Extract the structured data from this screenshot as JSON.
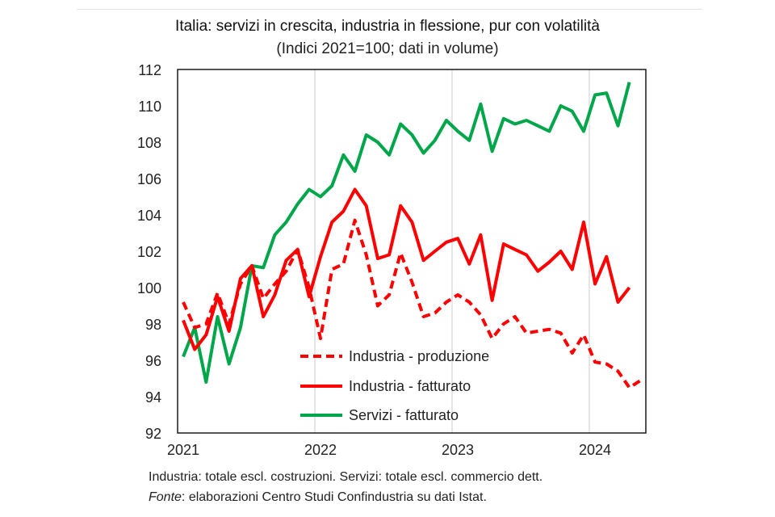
{
  "chart_data": {
    "type": "line",
    "title": "Italia: servizi in crescita, industria in flessione, pur con volatilità",
    "subtitle": "(Indici 2021=100; dati in volume)",
    "xlabel": "",
    "ylabel": "",
    "ylim": [
      92,
      112
    ],
    "yticks": [
      92,
      94,
      96,
      98,
      100,
      102,
      104,
      106,
      108,
      110,
      112
    ],
    "xticks": [
      "2021",
      "2022",
      "2023",
      "2024"
    ],
    "x_start": "2021-01",
    "x_frequency": "monthly",
    "grid": "vertical at year boundaries",
    "legend_position": "bottom-center inside plot",
    "series": [
      {
        "name": "Industria - produzione",
        "color": "#ff0000",
        "style": "dashed",
        "values": [
          99.2,
          97.8,
          98.0,
          99.7,
          98.0,
          100.2,
          101.2,
          99.4,
          100.2,
          100.9,
          102.1,
          100.0,
          97.2,
          101.0,
          101.3,
          103.7,
          101.8,
          99.0,
          99.6,
          101.9,
          100.3,
          98.4,
          98.6,
          99.2,
          99.6,
          99.2,
          98.5,
          97.2,
          98.0,
          98.4,
          97.5,
          97.6,
          97.7,
          97.5,
          96.4,
          97.4,
          95.9,
          95.8,
          95.4,
          94.5,
          94.9
        ]
      },
      {
        "name": "Industria - fatturato",
        "color": "#ff0000",
        "style": "solid",
        "values": [
          98.2,
          96.6,
          97.4,
          99.5,
          97.6,
          100.5,
          101.2,
          98.4,
          99.6,
          101.5,
          102.1,
          99.5,
          101.7,
          103.6,
          104.2,
          105.4,
          104.5,
          101.6,
          101.8,
          104.5,
          103.6,
          101.5,
          102.0,
          102.5,
          102.7,
          101.3,
          102.9,
          99.3,
          102.4,
          102.1,
          101.8,
          100.9,
          101.4,
          102.0,
          101.0,
          103.6,
          100.2,
          101.7,
          99.2,
          100.0
        ]
      },
      {
        "name": "Servizi - fatturato",
        "color": "#00a64a",
        "style": "solid",
        "values": [
          96.2,
          97.8,
          94.8,
          98.4,
          95.8,
          97.8,
          101.2,
          101.1,
          102.9,
          103.6,
          104.6,
          105.4,
          105.0,
          105.6,
          107.3,
          106.4,
          108.4,
          108.0,
          107.3,
          109.0,
          108.4,
          107.4,
          108.1,
          109.2,
          108.6,
          108.1,
          110.1,
          107.5,
          109.3,
          109.0,
          109.2,
          108.9,
          108.6,
          110.0,
          109.7,
          108.6,
          110.6,
          110.7,
          108.9,
          111.3
        ]
      }
    ]
  },
  "notes": {
    "line1": "Industria: totale escl. costruzioni. Servizi: totale escl. commercio dett.",
    "source_label": "Fonte",
    "source_text": ": elaborazioni Centro Studi Confindustria su dati Istat."
  }
}
